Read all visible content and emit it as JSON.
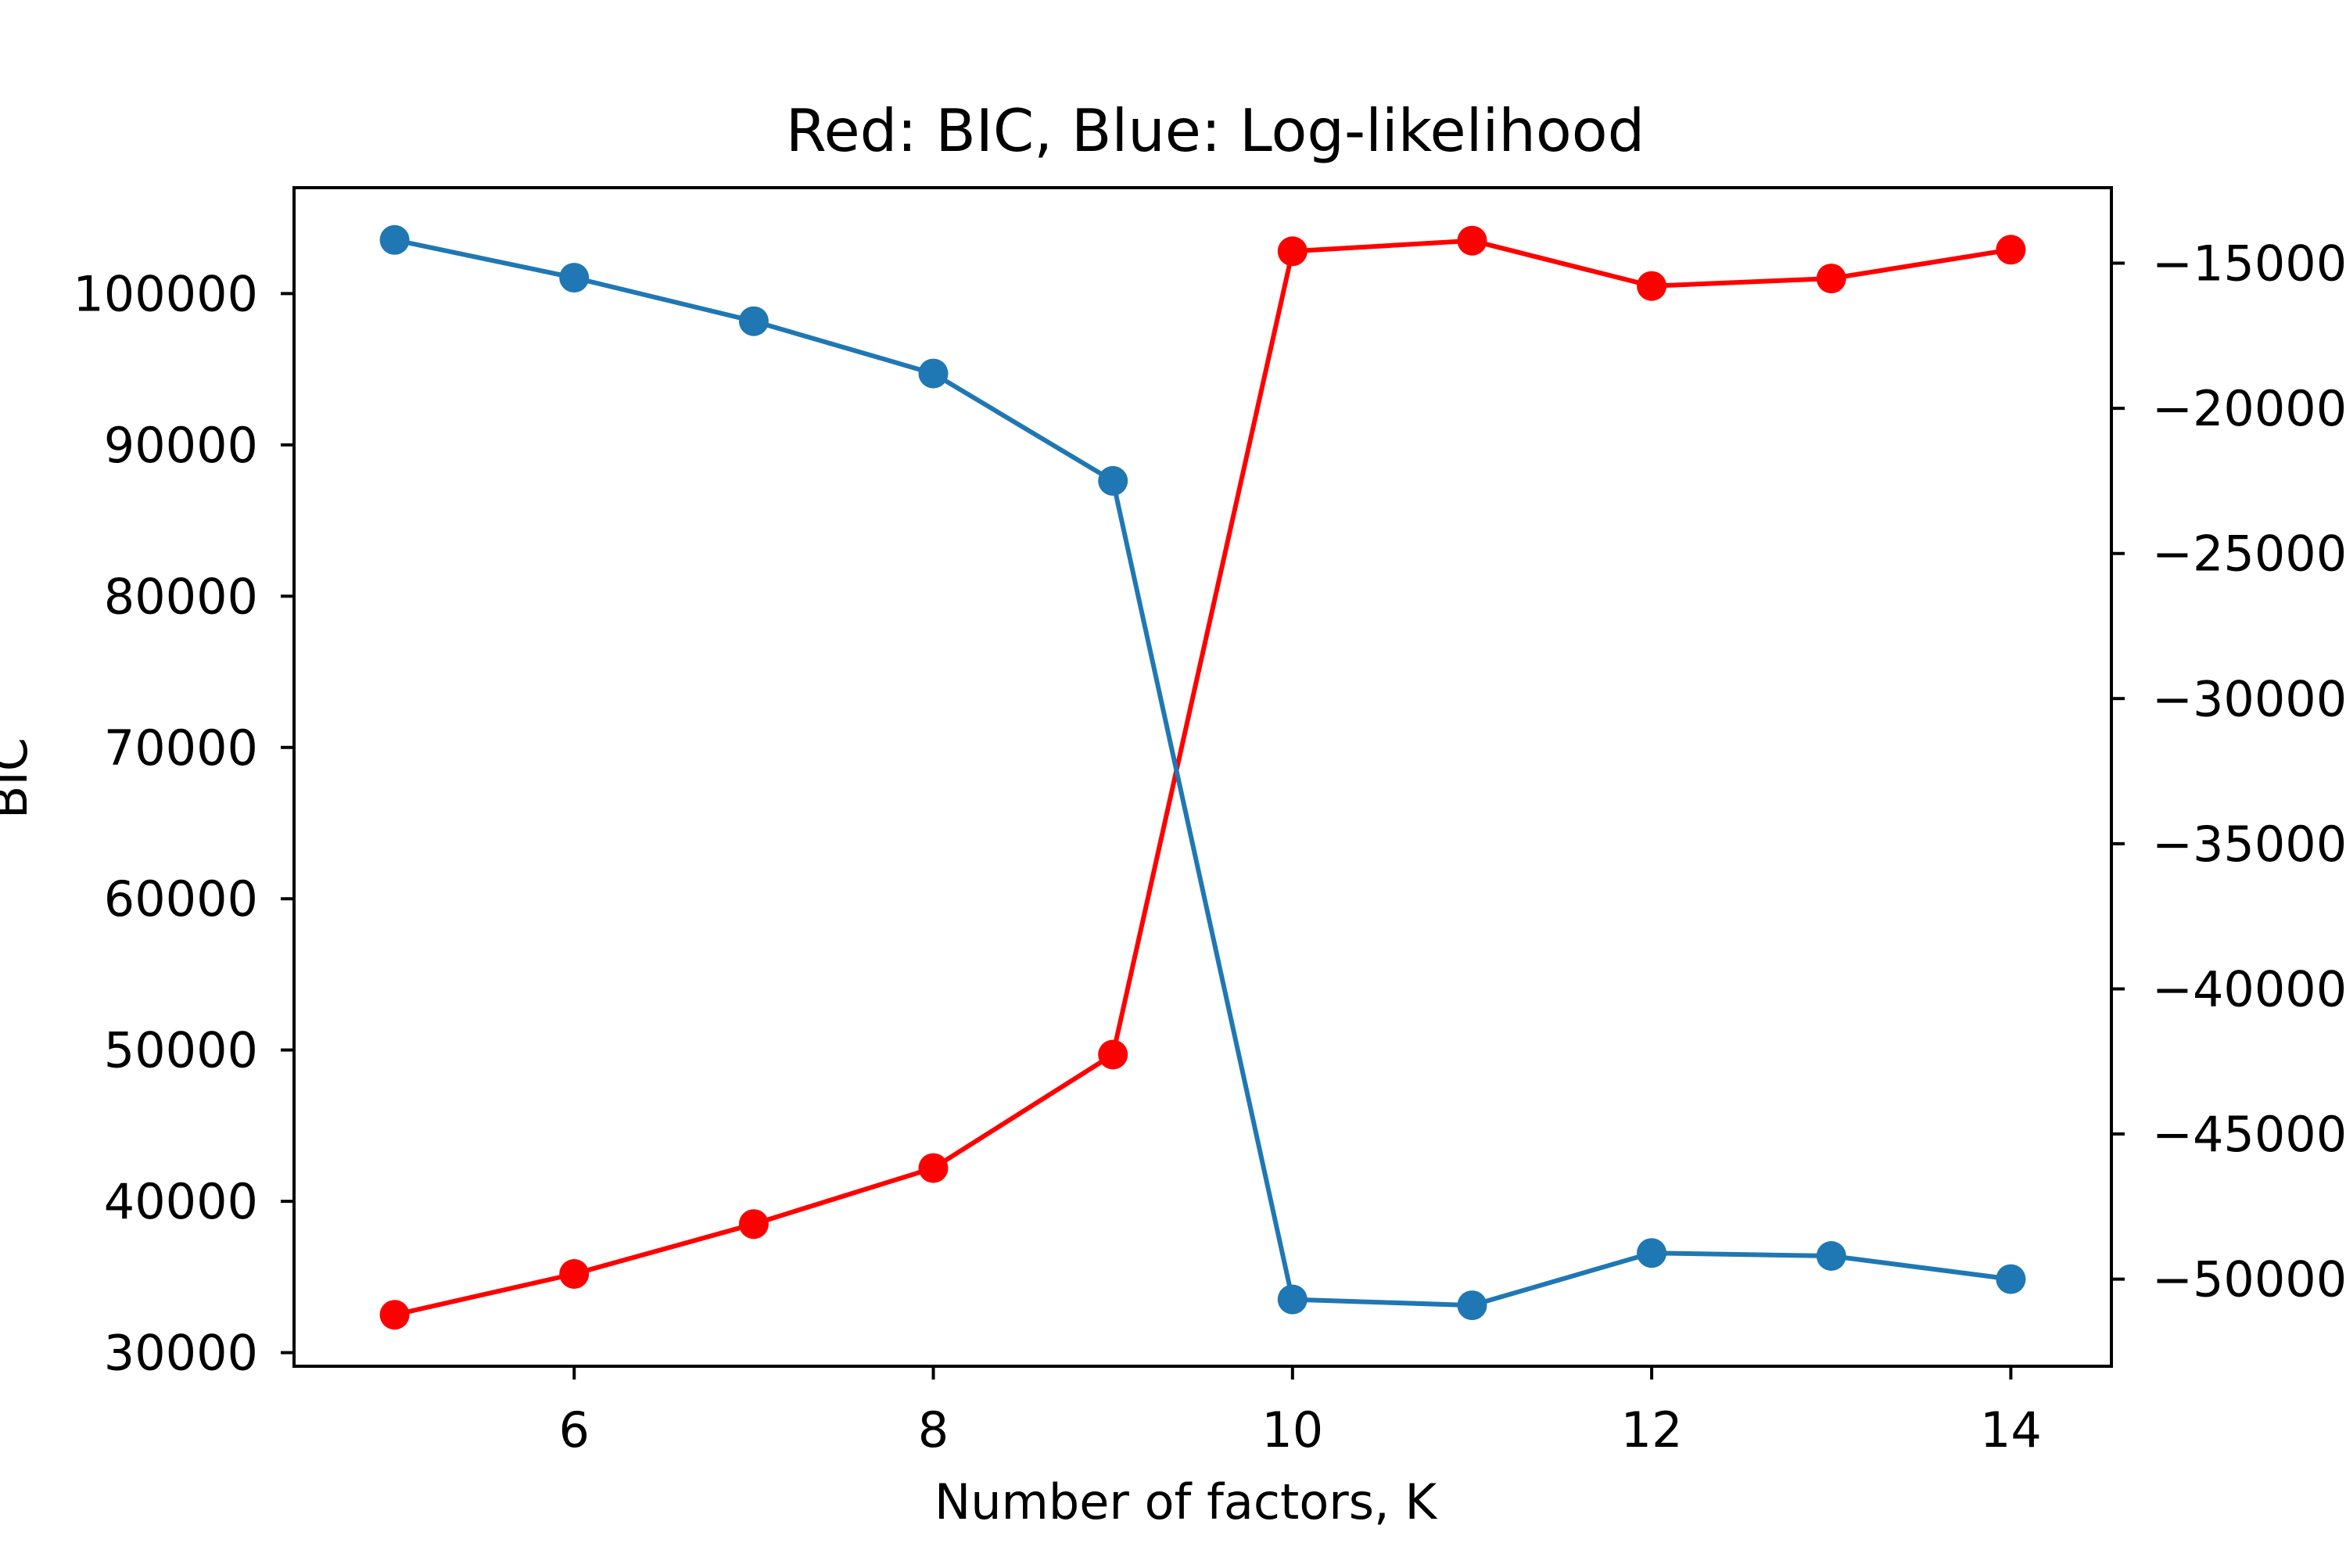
{
  "chart_data": {
    "type": "line",
    "title": "Red: BIC, Blue: Log-likelihood",
    "xlabel": "Number of factors, K",
    "ylabel": "BIC",
    "y2label": "",
    "x": [
      5,
      6,
      7,
      8,
      9,
      10,
      11,
      12,
      13,
      14
    ],
    "xticks": [
      6,
      8,
      10,
      12,
      14
    ],
    "xlim": [
      4.44,
      14.56
    ],
    "ylim": [
      29100,
      107000
    ],
    "yticks": [
      30000,
      40000,
      50000,
      60000,
      70000,
      80000,
      90000,
      100000
    ],
    "y2lim": [
      -53000,
      -12400
    ],
    "y2ticks": [
      -15000,
      -20000,
      -25000,
      -30000,
      -35000,
      -40000,
      -45000,
      -50000
    ],
    "y2tick_labels": [
      "−15000",
      "−20000",
      "−25000",
      "−30000",
      "−35000",
      "−40000",
      "−45000",
      "−50000"
    ],
    "grid": false,
    "series": [
      {
        "axis": "left",
        "color": "#ff0000",
        "values": [
          32500,
          35200,
          38500,
          42200,
          49700,
          102800,
          103500,
          100500,
          101000,
          102900
        ]
      },
      {
        "axis": "right",
        "color": "#1f77b4",
        "values": [
          -14200,
          -15500,
          -17000,
          -18800,
          -22500,
          -50700,
          -50900,
          -49100,
          -49200,
          -50000
        ]
      }
    ]
  }
}
